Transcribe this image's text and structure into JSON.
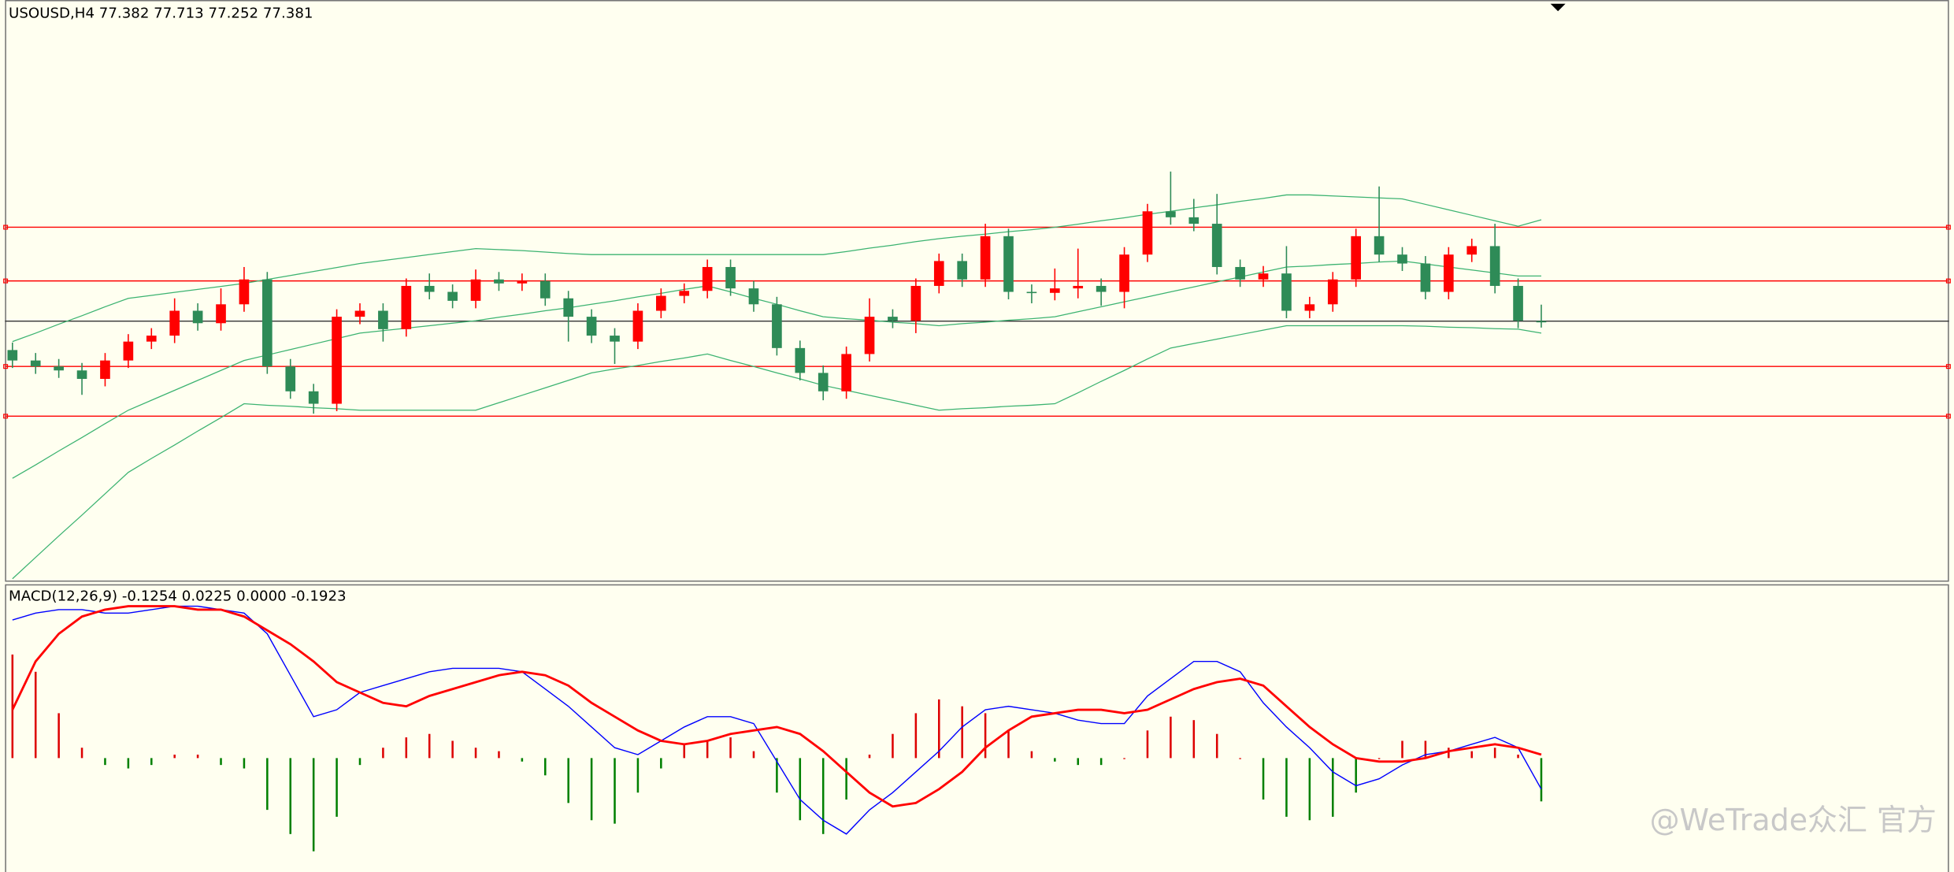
{
  "chart_data": [
    {
      "type": "candlestick",
      "title": "USOUSD,H4  77.382 77.713 77.252 77.381",
      "ylim": [
        72.14,
        83.84
      ],
      "up_color": "#ff0000",
      "down_color": "#2e8b57",
      "open": [
        76.8,
        76.59,
        76.47,
        76.39,
        76.22,
        76.59,
        76.97,
        77.09,
        77.59,
        77.34,
        77.72,
        78.22,
        76.47,
        75.97,
        75.72,
        77.47,
        77.59,
        77.22,
        78.09,
        77.97,
        77.79,
        78.22,
        78.14,
        78.19,
        77.84,
        77.47,
        77.09,
        76.97,
        77.59,
        77.89,
        77.99,
        78.47,
        78.04,
        77.72,
        76.84,
        76.34,
        75.97,
        76.72,
        77.47,
        77.39,
        78.09,
        78.59,
        78.22,
        79.09,
        77.97,
        77.95,
        78.04,
        78.09,
        77.97,
        78.72,
        79.59,
        79.47,
        79.34,
        78.47,
        78.22,
        78.34,
        77.59,
        77.72,
        78.22,
        79.09,
        78.72,
        78.54,
        77.97,
        78.72,
        78.89,
        78.09,
        77.382
      ],
      "high": [
        76.95,
        76.74,
        76.62,
        76.54,
        76.74,
        77.12,
        77.24,
        77.84,
        77.74,
        78.04,
        78.47,
        78.37,
        76.62,
        76.12,
        77.62,
        77.74,
        77.74,
        78.24,
        78.34,
        78.12,
        78.42,
        78.37,
        78.34,
        78.34,
        77.99,
        77.62,
        77.24,
        77.74,
        78.04,
        78.14,
        78.62,
        78.62,
        78.19,
        77.87,
        76.99,
        76.49,
        76.87,
        77.84,
        77.62,
        78.24,
        78.74,
        78.74,
        79.34,
        79.24,
        78.12,
        78.44,
        78.84,
        78.24,
        78.87,
        79.74,
        80.39,
        79.84,
        79.94,
        78.62,
        78.49,
        78.89,
        77.87,
        78.37,
        79.24,
        80.09,
        78.87,
        78.69,
        78.87,
        79.04,
        79.34,
        78.24,
        77.713
      ],
      "low": [
        76.44,
        76.32,
        76.24,
        75.9,
        76.07,
        76.44,
        76.82,
        76.94,
        77.19,
        77.19,
        77.57,
        76.32,
        75.82,
        75.52,
        75.57,
        77.32,
        76.97,
        77.07,
        77.82,
        77.64,
        77.64,
        77.99,
        77.99,
        77.69,
        76.97,
        76.94,
        76.52,
        76.82,
        77.44,
        77.74,
        77.84,
        77.89,
        77.57,
        76.69,
        76.19,
        75.79,
        75.82,
        76.57,
        77.24,
        77.14,
        77.94,
        78.07,
        78.07,
        77.82,
        77.74,
        77.8,
        77.84,
        77.69,
        77.64,
        78.57,
        79.32,
        79.19,
        78.32,
        78.07,
        78.07,
        77.44,
        77.44,
        77.57,
        78.07,
        78.57,
        78.39,
        77.82,
        77.82,
        78.57,
        77.94,
        77.24,
        77.252
      ],
      "close": [
        76.59,
        76.47,
        76.39,
        76.22,
        76.59,
        76.97,
        77.09,
        77.59,
        77.34,
        77.72,
        78.22,
        76.47,
        75.97,
        75.72,
        77.47,
        77.59,
        77.22,
        78.09,
        77.97,
        77.79,
        78.22,
        78.14,
        78.19,
        77.84,
        77.47,
        77.09,
        76.97,
        77.59,
        77.89,
        77.99,
        78.47,
        78.04,
        77.72,
        76.84,
        76.34,
        75.97,
        76.72,
        77.47,
        77.39,
        78.09,
        78.59,
        78.22,
        79.09,
        77.97,
        77.95,
        78.04,
        78.09,
        77.97,
        78.72,
        79.59,
        79.47,
        79.34,
        78.47,
        78.22,
        78.34,
        77.59,
        77.72,
        78.22,
        79.09,
        78.72,
        78.54,
        77.97,
        78.72,
        78.89,
        78.09,
        77.39,
        77.381
      ],
      "band_color": "#3cb371",
      "bands": {
        "upper": [
          76.97,
          77.14,
          77.32,
          77.49,
          77.67,
          77.84,
          77.9,
          77.96,
          78.02,
          78.08,
          78.14,
          78.22,
          78.3,
          78.38,
          78.46,
          78.54,
          78.6,
          78.66,
          78.72,
          78.78,
          78.84,
          78.82,
          78.8,
          78.77,
          78.74,
          78.72,
          78.72,
          78.72,
          78.72,
          78.72,
          78.72,
          78.72,
          78.72,
          78.72,
          78.72,
          78.72,
          78.78,
          78.85,
          78.91,
          78.98,
          79.04,
          79.09,
          79.13,
          79.18,
          79.22,
          79.27,
          79.33,
          79.4,
          79.46,
          79.53,
          79.59,
          79.66,
          79.72,
          79.79,
          79.85,
          79.92,
          79.92,
          79.9,
          79.88,
          79.86,
          79.84,
          79.73,
          79.62,
          79.51,
          79.4,
          79.29,
          79.42
        ],
        "middle": [
          74.22,
          74.49,
          74.77,
          75.04,
          75.32,
          75.59,
          75.79,
          75.99,
          76.19,
          76.39,
          76.59,
          76.7,
          76.81,
          76.92,
          77.03,
          77.14,
          77.19,
          77.24,
          77.29,
          77.34,
          77.39,
          77.46,
          77.52,
          77.59,
          77.65,
          77.72,
          77.79,
          77.87,
          77.94,
          78.02,
          78.09,
          77.97,
          77.84,
          77.72,
          77.59,
          77.47,
          77.43,
          77.4,
          77.36,
          77.33,
          77.29,
          77.33,
          77.36,
          77.4,
          77.43,
          77.47,
          77.57,
          77.67,
          77.77,
          77.87,
          77.97,
          78.07,
          78.17,
          78.27,
          78.37,
          78.47,
          78.49,
          78.52,
          78.54,
          78.57,
          78.59,
          78.53,
          78.47,
          78.41,
          78.35,
          78.29,
          78.29
        ],
        "lower": [
          72.2,
          72.63,
          73.06,
          73.48,
          73.91,
          74.34,
          74.62,
          74.89,
          75.17,
          75.44,
          75.72,
          75.69,
          75.67,
          75.64,
          75.62,
          75.59,
          75.59,
          75.59,
          75.59,
          75.59,
          75.59,
          75.74,
          75.89,
          76.04,
          76.19,
          76.34,
          76.42,
          76.49,
          76.57,
          76.64,
          76.72,
          76.59,
          76.47,
          76.34,
          76.22,
          76.09,
          75.99,
          75.89,
          75.79,
          75.69,
          75.59,
          75.62,
          75.64,
          75.67,
          75.69,
          75.72,
          75.94,
          76.17,
          76.39,
          76.62,
          76.84,
          76.93,
          77.02,
          77.11,
          77.2,
          77.29,
          77.29,
          77.29,
          77.29,
          77.29,
          77.29,
          77.28,
          77.26,
          77.25,
          77.23,
          77.22,
          77.14
        ]
      },
      "levels": [
        79.27,
        78.19,
        76.47,
        75.47
      ],
      "level_color": "#ff0000",
      "price_line": 77.381,
      "price_line_color": "#333333"
    },
    {
      "type": "macd",
      "title": "MACD(12,26,9) -0.1254 0.0225 0.0000 -0.1923",
      "ylim": [
        -0.33,
        0.5
      ],
      "up_color": "#dd0000",
      "down_color": "#008000",
      "histogram": [
        0.3,
        0.25,
        0.13,
        0.03,
        -0.02,
        -0.03,
        -0.02,
        0.01,
        0.01,
        -0.02,
        -0.03,
        -0.15,
        -0.22,
        -0.27,
        -0.17,
        -0.02,
        0.03,
        0.06,
        0.07,
        0.05,
        0.03,
        0.02,
        -0.01,
        -0.05,
        -0.13,
        -0.18,
        -0.19,
        -0.1,
        -0.03,
        0.04,
        0.05,
        0.06,
        0.02,
        -0.1,
        -0.18,
        -0.22,
        -0.12,
        0.01,
        0.07,
        0.13,
        0.17,
        0.15,
        0.13,
        0.08,
        0.02,
        -0.01,
        -0.02,
        -0.02,
        0.0,
        0.08,
        0.12,
        0.11,
        0.07,
        0.0,
        -0.12,
        -0.17,
        -0.18,
        -0.17,
        -0.1,
        0.0,
        0.05,
        0.05,
        0.03,
        0.02,
        0.03,
        0.01,
        -0.1254
      ],
      "macd_color": "#0000ff",
      "macd": [
        0.4,
        0.42,
        0.43,
        0.43,
        0.42,
        0.42,
        0.43,
        0.44,
        0.44,
        0.43,
        0.42,
        0.36,
        0.24,
        0.12,
        0.14,
        0.19,
        0.21,
        0.23,
        0.25,
        0.26,
        0.26,
        0.26,
        0.25,
        0.2,
        0.15,
        0.09,
        0.03,
        0.01,
        0.05,
        0.09,
        0.12,
        0.12,
        0.1,
        -0.01,
        -0.12,
        -0.18,
        -0.22,
        -0.15,
        -0.1,
        -0.04,
        0.02,
        0.09,
        0.14,
        0.15,
        0.14,
        0.13,
        0.11,
        0.1,
        0.1,
        0.18,
        0.23,
        0.28,
        0.28,
        0.25,
        0.16,
        0.09,
        0.03,
        -0.04,
        -0.08,
        -0.06,
        -0.02,
        0.01,
        0.02,
        0.04,
        0.06,
        0.03,
        -0.09
      ],
      "signal_color": "#ff0000",
      "signal": [
        0.14,
        0.28,
        0.36,
        0.41,
        0.43,
        0.44,
        0.44,
        0.44,
        0.43,
        0.43,
        0.41,
        0.37,
        0.33,
        0.28,
        0.22,
        0.19,
        0.16,
        0.15,
        0.18,
        0.2,
        0.22,
        0.24,
        0.25,
        0.24,
        0.21,
        0.16,
        0.12,
        0.08,
        0.05,
        0.04,
        0.05,
        0.07,
        0.08,
        0.09,
        0.07,
        0.02,
        -0.04,
        -0.1,
        -0.14,
        -0.13,
        -0.09,
        -0.04,
        0.03,
        0.08,
        0.12,
        0.13,
        0.14,
        0.14,
        0.13,
        0.14,
        0.17,
        0.2,
        0.22,
        0.23,
        0.21,
        0.15,
        0.09,
        0.04,
        0.0,
        -0.01,
        -0.01,
        0.0,
        0.02,
        0.03,
        0.04,
        0.03,
        0.01
      ]
    }
  ],
  "watermark": "@WeTrade众汇 官方"
}
